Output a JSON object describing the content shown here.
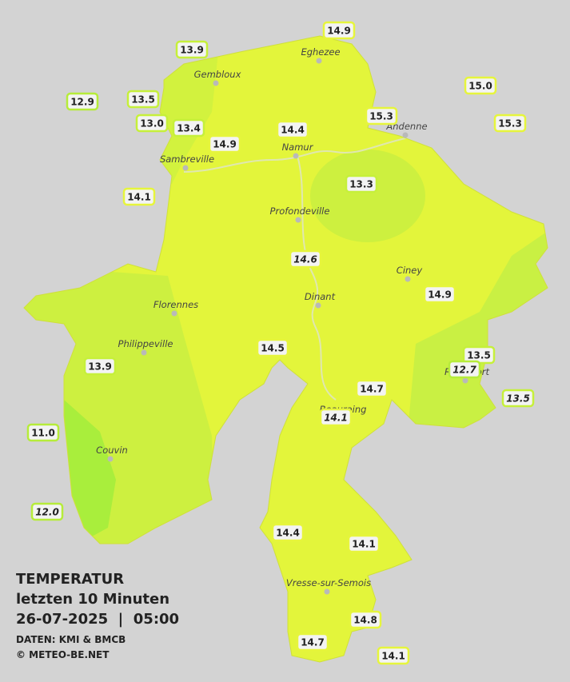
{
  "legend": {
    "title": "TEMPERATUR",
    "period": "letzten 10 Minuten",
    "datetime": "26-07-2025  |  05:00",
    "source": "DATEN: KMI & BMCB",
    "copyright": "© METEO-BE.NET"
  },
  "places": [
    {
      "name": "Eghezee"
    },
    {
      "name": "Gembloux"
    },
    {
      "name": "Namur"
    },
    {
      "name": "Andenne"
    },
    {
      "name": "Sambreville"
    },
    {
      "name": "Profondeville"
    },
    {
      "name": "Ciney"
    },
    {
      "name": "Dinant"
    },
    {
      "name": "Florennes"
    },
    {
      "name": "Philippeville"
    },
    {
      "name": "Couvin"
    },
    {
      "name": "Beauraing"
    },
    {
      "name": "Vresse-sur-Semois"
    },
    {
      "name": "Rochefort"
    }
  ],
  "stations": [
    {
      "value": "13.9"
    },
    {
      "value": "14.9"
    },
    {
      "value": "15.0"
    },
    {
      "value": "12.9"
    },
    {
      "value": "13.5"
    },
    {
      "value": "13.0"
    },
    {
      "value": "13.4"
    },
    {
      "value": "14.9"
    },
    {
      "value": "14.4"
    },
    {
      "value": "15.3"
    },
    {
      "value": "15.3"
    },
    {
      "value": "14.1"
    },
    {
      "value": "13.3"
    },
    {
      "value": "14.6"
    },
    {
      "value": "14.9"
    },
    {
      "value": "14.5"
    },
    {
      "value": "13.9"
    },
    {
      "value": "13.5"
    },
    {
      "value": "12.7"
    },
    {
      "value": "14.7"
    },
    {
      "value": "13.5"
    },
    {
      "value": "14.1"
    },
    {
      "value": "11.0"
    },
    {
      "value": "12.0"
    },
    {
      "value": "14.4"
    },
    {
      "value": "14.1"
    },
    {
      "value": "14.8"
    },
    {
      "value": "14.7"
    },
    {
      "value": "14.1"
    }
  ]
}
